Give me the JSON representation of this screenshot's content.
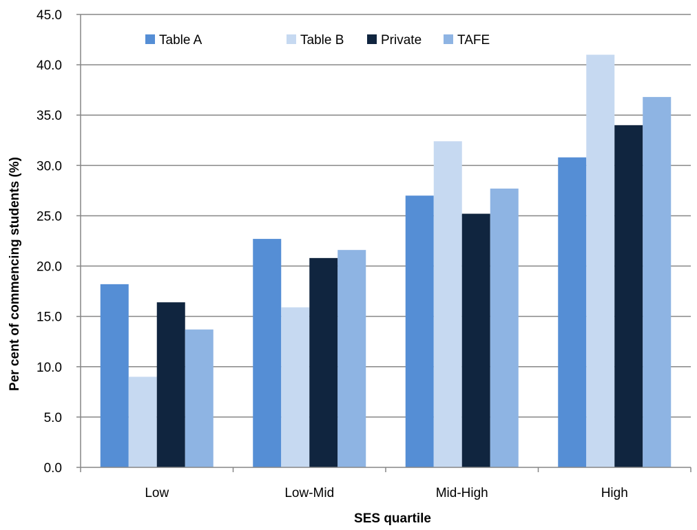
{
  "chart_data": {
    "type": "bar",
    "title": "",
    "xlabel": "SES quartile",
    "ylabel": "Per cent of commencing  students (%)",
    "categories": [
      "Low",
      "Low-Mid",
      "Mid-High",
      "High"
    ],
    "ylim": [
      0,
      45
    ],
    "ytick_step": 5,
    "ytick_labels": [
      "0.0",
      "5.0",
      "10.0",
      "15.0",
      "20.0",
      "25.0",
      "30.0",
      "35.0",
      "40.0",
      "45.0"
    ],
    "grid": true,
    "legend_position": "top",
    "series": [
      {
        "name": "Table A",
        "color": "#558ED5",
        "values": [
          18.2,
          22.7,
          27.0,
          30.8
        ]
      },
      {
        "name": "Table B",
        "color": "#C6D9F1",
        "values": [
          9.0,
          15.9,
          32.4,
          41.0
        ]
      },
      {
        "name": "Private",
        "color": "#10253F",
        "values": [
          16.4,
          20.8,
          25.2,
          34.0
        ]
      },
      {
        "name": "TAFE",
        "color": "#8EB4E3",
        "values": [
          13.7,
          21.6,
          27.7,
          36.8
        ]
      }
    ]
  }
}
